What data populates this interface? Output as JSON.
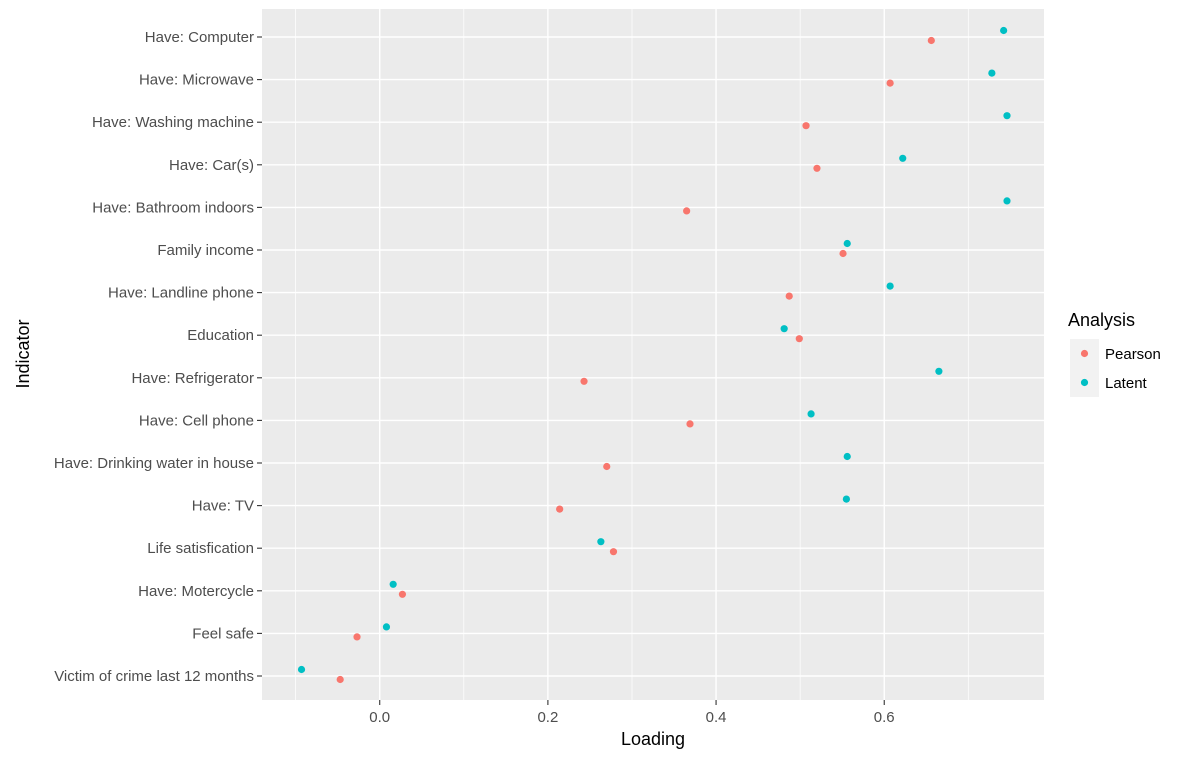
{
  "chart_data": {
    "type": "scatter",
    "xlabel": "Loading",
    "ylabel": "Indicator",
    "xlim": [
      -0.14,
      0.79
    ],
    "x_ticks": [
      "0.0",
      "0.2",
      "0.4",
      "0.6"
    ],
    "x_tick_values": [
      0.0,
      0.2,
      0.4,
      0.6
    ],
    "grid": true,
    "background": "#ebebeb",
    "legend_position": "right",
    "legend": {
      "title": "Analysis",
      "entries": [
        {
          "name": "Pearson",
          "color": "#f8766d"
        },
        {
          "name": "Latent",
          "color": "#00bfc4"
        }
      ]
    },
    "categories": [
      "Have: Computer",
      "Have: Microwave",
      "Have: Washing machine",
      "Have: Car(s)",
      "Have: Bathroom indoors",
      "Family income",
      "Have: Landline phone",
      "Education",
      "Have: Refrigerator",
      "Have: Cell phone",
      "Have: Drinking water in house",
      "Have: TV",
      "Life satisfication",
      "Have: Motercycle",
      "Feel safe",
      "Victim of crime last 12 months"
    ],
    "series": [
      {
        "name": "Pearson",
        "color": "#f8766d",
        "values": [
          0.656,
          0.607,
          0.507,
          0.52,
          0.365,
          0.551,
          0.487,
          0.499,
          0.243,
          0.369,
          0.27,
          0.214,
          0.278,
          0.027,
          -0.027,
          -0.047
        ]
      },
      {
        "name": "Latent",
        "color": "#00bfc4",
        "values": [
          0.742,
          0.728,
          0.746,
          0.622,
          0.746,
          0.556,
          0.607,
          0.481,
          0.665,
          0.513,
          0.556,
          0.555,
          0.263,
          0.016,
          0.008,
          -0.093
        ]
      }
    ]
  }
}
